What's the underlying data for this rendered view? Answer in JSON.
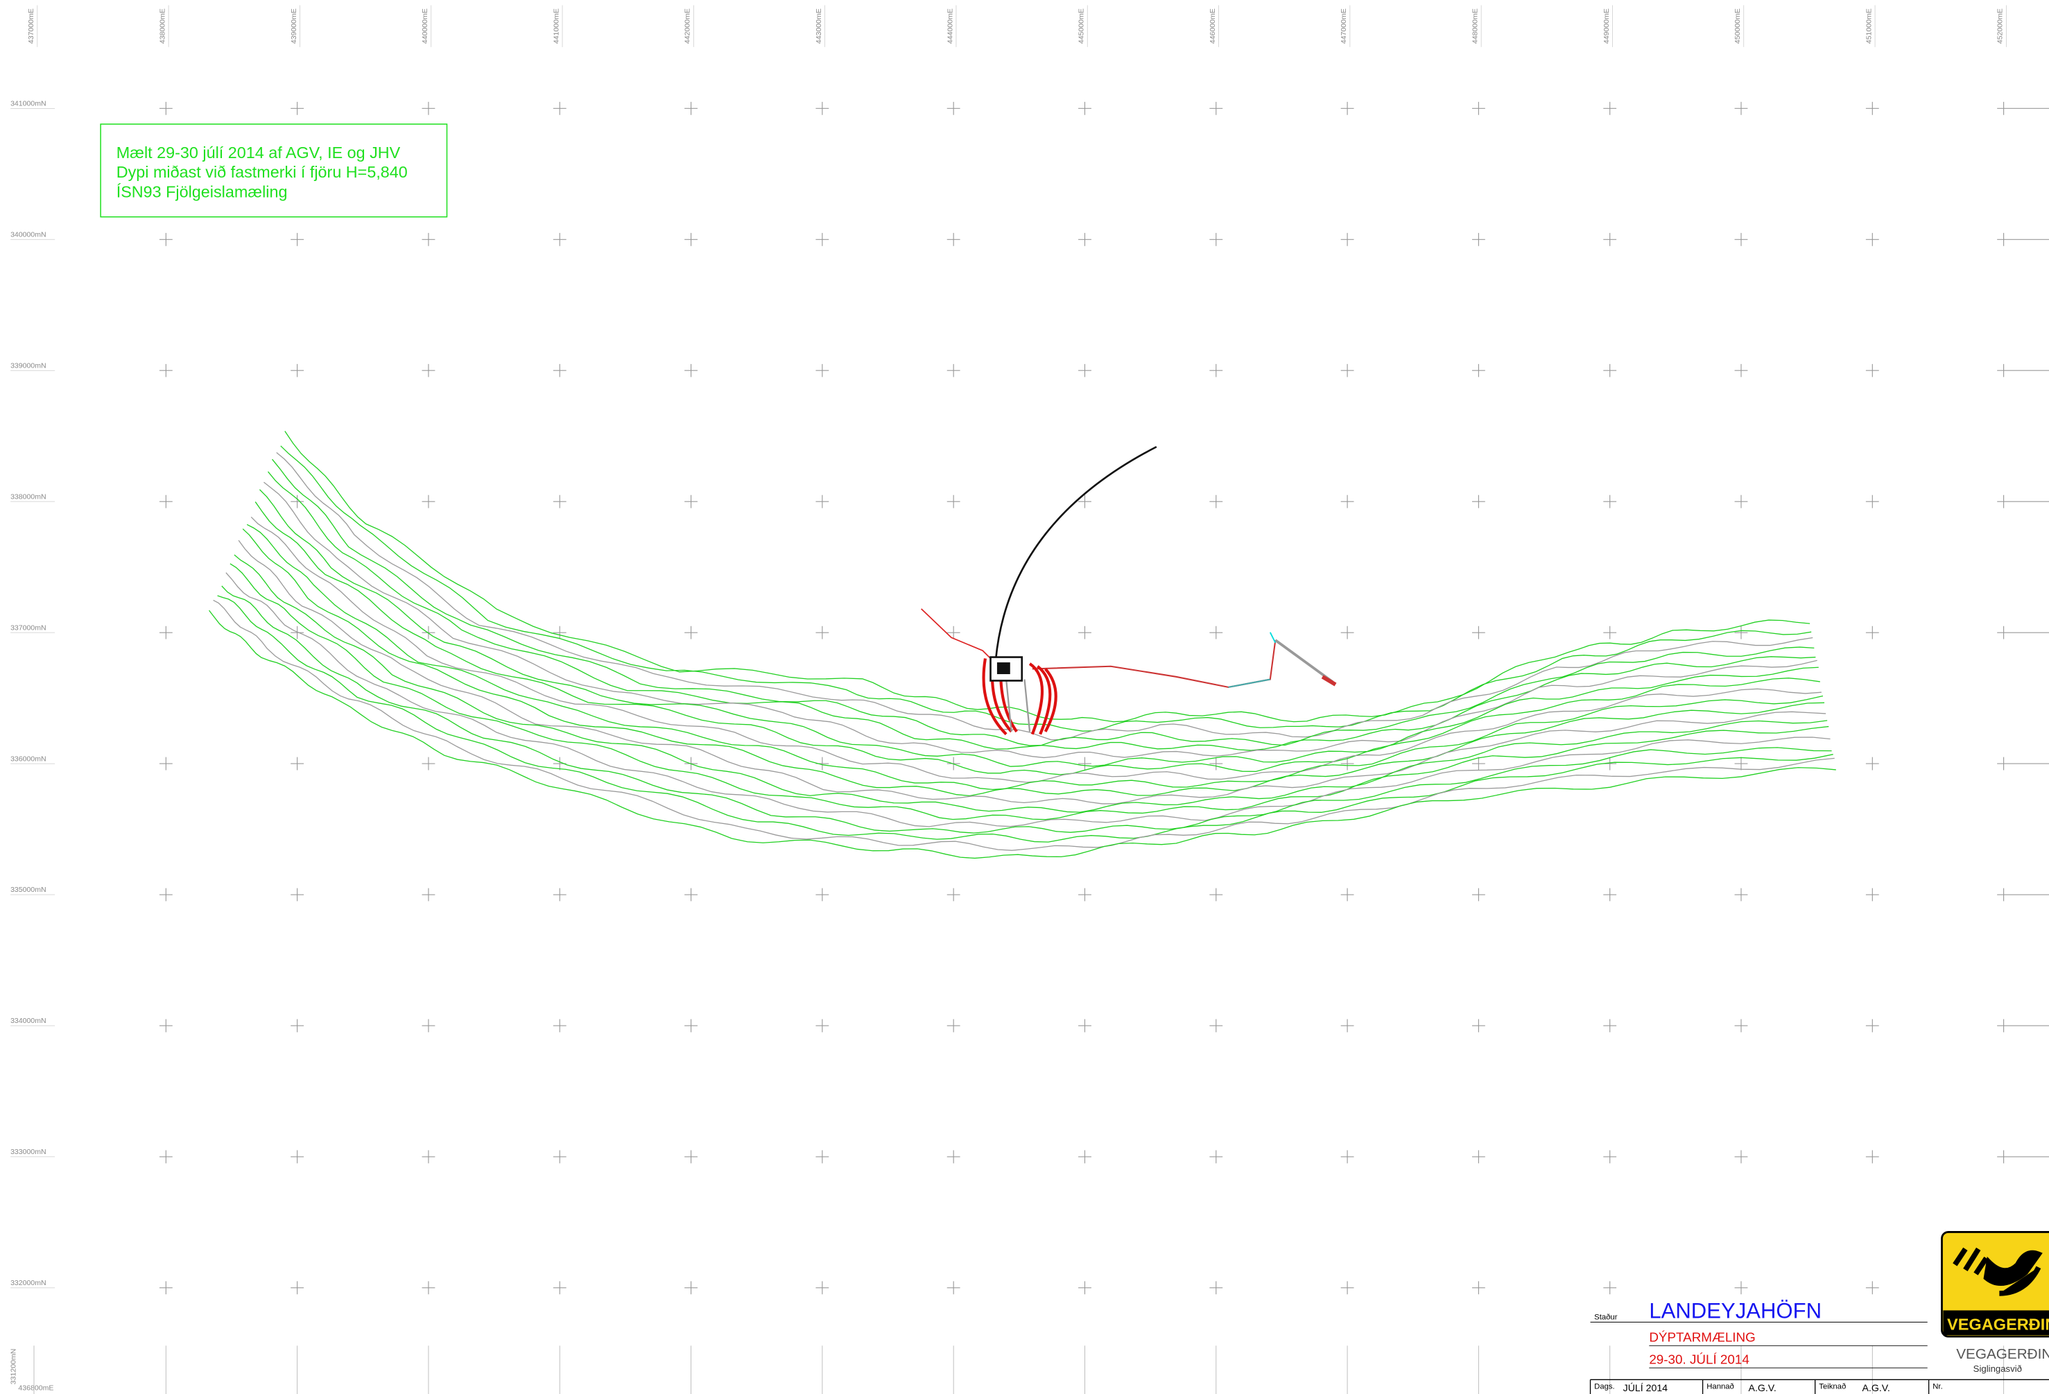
{
  "grid": {
    "eastings": [
      {
        "value": 437000,
        "label": "437000mE"
      },
      {
        "value": 438000,
        "label": "438000mE"
      },
      {
        "value": 439000,
        "label": "439000mE"
      },
      {
        "value": 440000,
        "label": "440000mE"
      },
      {
        "value": 441000,
        "label": "441000mE"
      },
      {
        "value": 442000,
        "label": "442000mE"
      },
      {
        "value": 443000,
        "label": "443000mE"
      },
      {
        "value": 444000,
        "label": "444000mE"
      },
      {
        "value": 445000,
        "label": "445000mE"
      },
      {
        "value": 446000,
        "label": "446000mE"
      },
      {
        "value": 447000,
        "label": "447000mE"
      },
      {
        "value": 448000,
        "label": "448000mE"
      },
      {
        "value": 449000,
        "label": "449000mE"
      },
      {
        "value": 450000,
        "label": "450000mE"
      },
      {
        "value": 451000,
        "label": "451000mE"
      },
      {
        "value": 452000,
        "label": "452000mE"
      }
    ],
    "northings": [
      {
        "value": 341000,
        "label": "341000mN"
      },
      {
        "value": 340000,
        "label": "340000mN"
      },
      {
        "value": 339000,
        "label": "339000mN"
      },
      {
        "value": 338000,
        "label": "338000mN"
      },
      {
        "value": 337000,
        "label": "337000mN"
      },
      {
        "value": 336000,
        "label": "336000mN"
      },
      {
        "value": 335000,
        "label": "335000mN"
      },
      {
        "value": 334000,
        "label": "334000mN"
      },
      {
        "value": 333000,
        "label": "333000mN"
      },
      {
        "value": 332000,
        "label": "332000mN"
      }
    ],
    "sheet_corner": {
      "northing": {
        "value": 331200,
        "label": "331200mN"
      },
      "easting": {
        "value": 436800,
        "label": "436800mE"
      }
    }
  },
  "note": {
    "lines": [
      "Mælt 29-30 júlí 2014 af AGV, IE og JHV",
      "Dypi miðast við fastmerki í fjöru H=5,840",
      "ÍSN93 Fjölgeislamæling"
    ]
  },
  "title_block": {
    "place_label": "Staður",
    "place": "LANDEYJAHÖFN",
    "subject": "DÝPTARMÆLING",
    "date": "29-30. JÚLÍ 2014",
    "fields": [
      {
        "label": "Dags.",
        "value": "JÚLÍ 2014"
      },
      {
        "label": "Hannað",
        "value": "A.G.V."
      },
      {
        "label": "Teiknað",
        "value": "A.G.V."
      },
      {
        "label": "Nr."
      }
    ]
  },
  "logo": {
    "badge": "VEGAGERÐIN",
    "name": "VEGAGERÐIN",
    "division": "Siglingasvið"
  }
}
